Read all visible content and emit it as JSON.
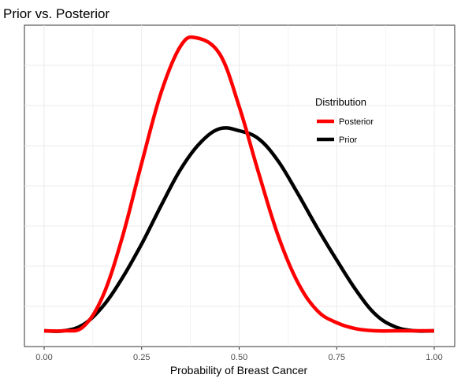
{
  "chart_data": {
    "type": "line",
    "title": "Prior vs. Posterior",
    "xlabel": "Probability of Breast Cancer",
    "ylabel": "",
    "xlim": [
      0,
      1
    ],
    "x_ticks": [
      "0.00",
      "0.25",
      "0.50",
      "0.75",
      "1.00"
    ],
    "y_ticks_labeled": false,
    "grid": true,
    "legend": {
      "title": "Distribution",
      "position": "right",
      "entries": [
        "Posterior",
        "Prior"
      ]
    },
    "series": [
      {
        "name": "Posterior",
        "color": "#ff0000",
        "peak_x": 0.39,
        "x": [
          0.0,
          0.05,
          0.1,
          0.15,
          0.2,
          0.25,
          0.3,
          0.35,
          0.39,
          0.45,
          0.5,
          0.55,
          0.6,
          0.65,
          0.7,
          0.75,
          0.8,
          0.85,
          0.9,
          0.95,
          1.0
        ],
        "y": [
          0.0,
          0.0,
          0.02,
          0.17,
          0.46,
          0.83,
          1.18,
          1.41,
          1.45,
          1.37,
          1.11,
          0.78,
          0.47,
          0.24,
          0.1,
          0.04,
          0.01,
          0.0,
          0.0,
          0.0,
          0.0
        ]
      },
      {
        "name": "Prior",
        "color": "#000000",
        "peak_x": 0.5,
        "x": [
          0.0,
          0.05,
          0.1,
          0.15,
          0.2,
          0.25,
          0.3,
          0.35,
          0.4,
          0.45,
          0.5,
          0.55,
          0.6,
          0.65,
          0.7,
          0.75,
          0.8,
          0.85,
          0.9,
          0.95,
          1.0
        ],
        "y": [
          0.0,
          0.0,
          0.03,
          0.12,
          0.26,
          0.43,
          0.62,
          0.8,
          0.93,
          1.0,
          0.99,
          0.95,
          0.84,
          0.68,
          0.51,
          0.35,
          0.2,
          0.08,
          0.02,
          0.0,
          0.0
        ]
      }
    ]
  }
}
